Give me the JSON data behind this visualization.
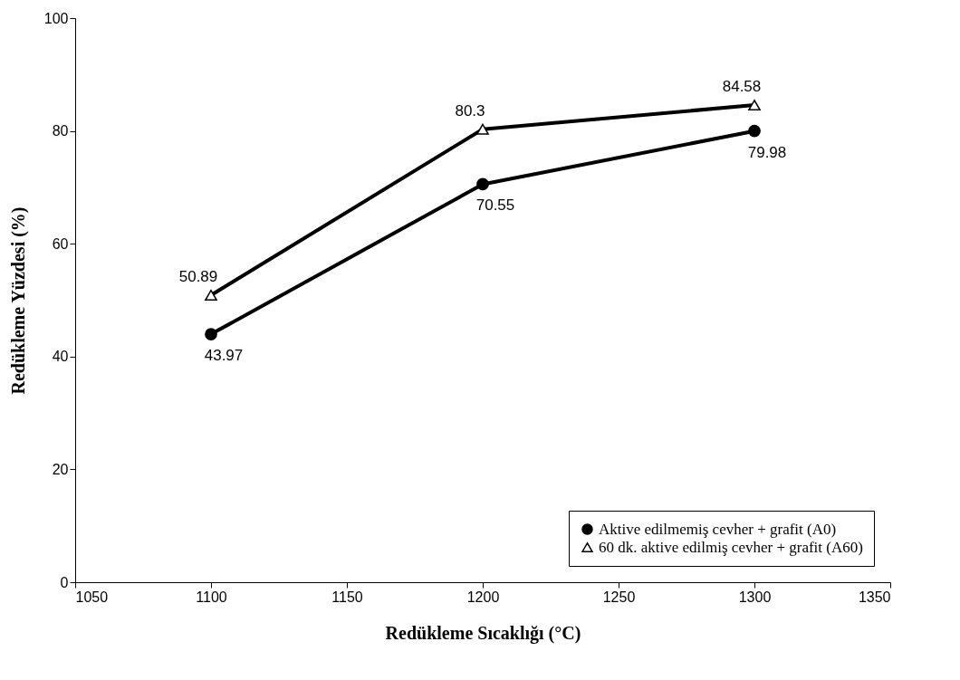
{
  "chart_data": {
    "type": "line",
    "xlabel": "Redükleme Sıcaklığı (°C)",
    "ylabel": "Redükleme Yüzdesi (%)",
    "xlim": [
      1050,
      1350
    ],
    "xticks": [
      1050,
      1100,
      1150,
      1200,
      1250,
      1300,
      1350
    ],
    "ylim": [
      0,
      100
    ],
    "yticks": [
      0,
      20,
      40,
      60,
      80,
      100
    ],
    "grid": false,
    "legend": "bottom right",
    "data_labels": true,
    "line_style": "solid",
    "series": [
      {
        "name": "Aktive edilmemiş cevher + grafit (A0)",
        "color": "#000000",
        "marker": "circle",
        "x": [
          1100,
          1200,
          1300
        ],
        "values": [
          43.97,
          70.55,
          79.98
        ]
      },
      {
        "name": "60 dk. aktive edilmiş cevher + grafit (A60)",
        "color": "#000000",
        "marker": "triangle",
        "x": [
          1100,
          1200,
          1300
        ],
        "values": [
          50.89,
          80.3,
          84.58
        ]
      }
    ]
  }
}
